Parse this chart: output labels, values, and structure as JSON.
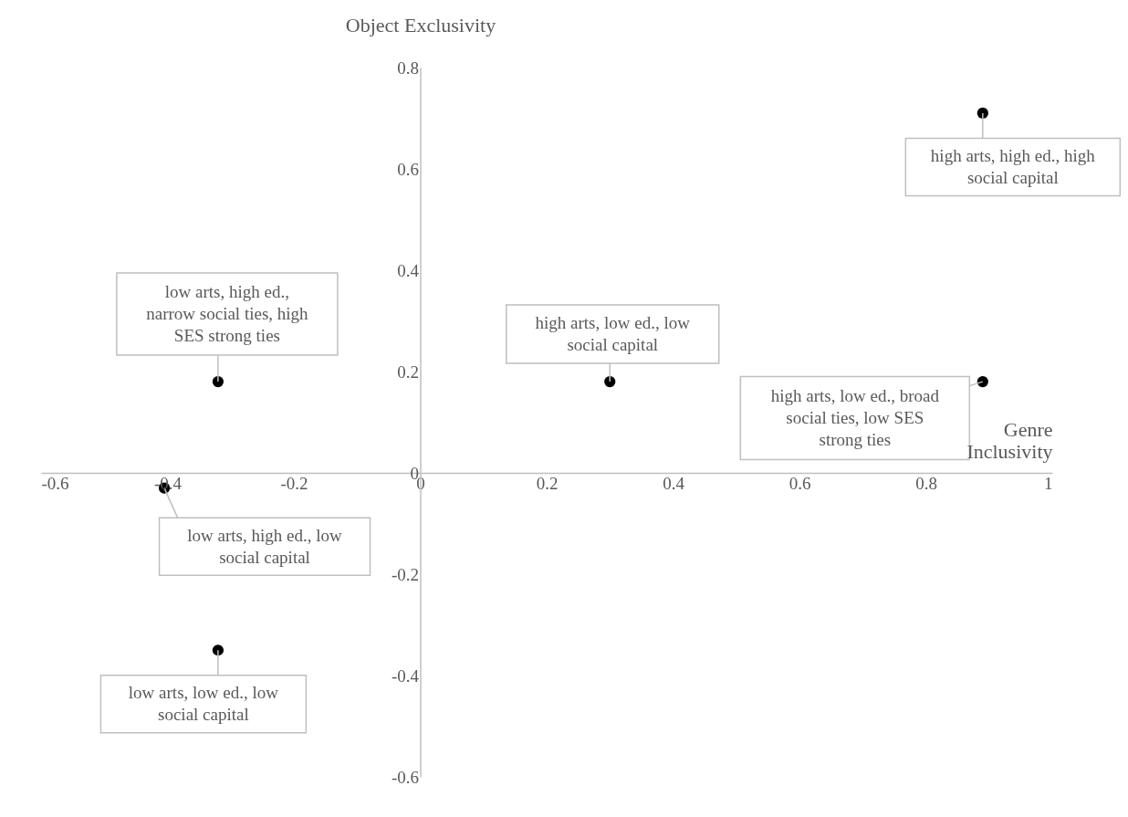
{
  "chart_data": {
    "type": "scatter",
    "xlabel": "Genre Inclusivity",
    "ylabel": "Object Exclusivity",
    "xlim": [
      -0.6,
      1
    ],
    "xticks": [
      -0.6,
      -0.4,
      -0.2,
      0,
      0.2,
      0.4,
      0.6,
      0.8,
      1
    ],
    "ylim": [
      -0.6,
      0.8
    ],
    "yticks": [
      -0.6,
      -0.4,
      -0.2,
      0,
      0.2,
      0.4,
      0.6,
      0.8
    ],
    "grid": false,
    "marker": "circle",
    "series": [
      {
        "color": "#000000",
        "x": [
          -0.32,
          -0.405,
          -0.32,
          0.3,
          0.89,
          0.89
        ],
        "values": [
          0.18,
          -0.03,
          -0.35,
          0.18,
          0.18,
          0.71
        ]
      }
    ],
    "annotations": [
      {
        "text": "low arts, high ed., narrow social ties, high SES strong ties",
        "x": -0.32,
        "y": 0.18
      },
      {
        "text": "low arts, high ed., low social capital",
        "x": -0.405,
        "y": -0.03
      },
      {
        "text": "low arts, low ed., low social capital",
        "x": -0.32,
        "y": -0.35
      },
      {
        "text": "high arts, low ed., low social capital",
        "x": 0.3,
        "y": 0.18
      },
      {
        "text": "high arts, low ed., broad social ties, low SES strong ties",
        "x": 0.89,
        "y": 0.18
      },
      {
        "text": "high arts, high ed., high social capital",
        "x": 0.89,
        "y": 0.71
      }
    ]
  }
}
